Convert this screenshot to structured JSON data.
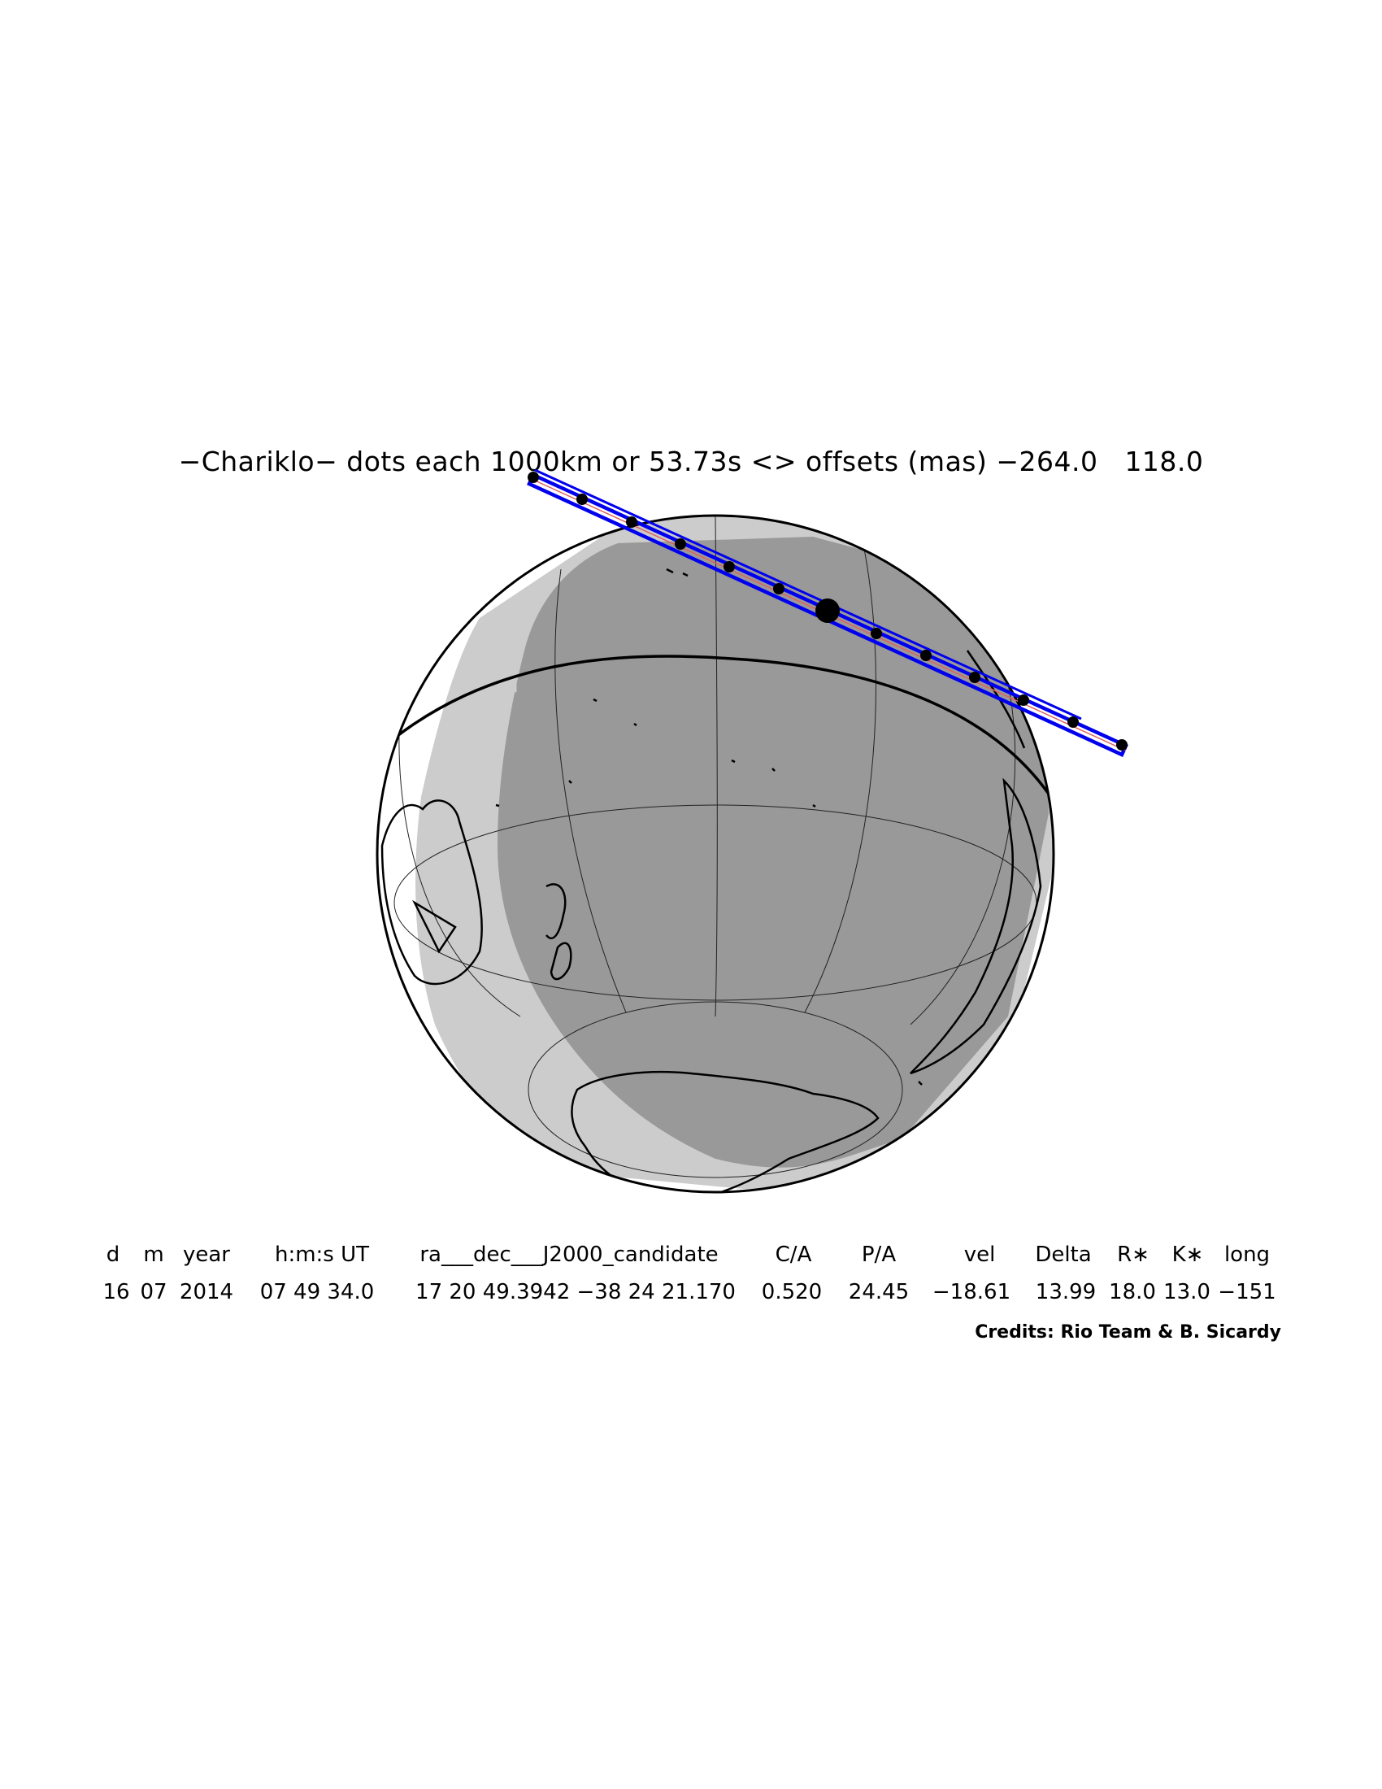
{
  "title": "−Chariklo− dots each 1000km or 53.73s <> offsets (mas) −264.0   118.0",
  "table": {
    "headers": [
      "d",
      "m",
      "year",
      "h:m:s UT",
      "ra___dec___J2000_candidate",
      "C/A",
      "P/A",
      "vel",
      "Delta",
      "R∗",
      "K∗",
      "long"
    ],
    "values": [
      "16",
      "07",
      "2014",
      "07 49 34.0",
      "17 20 49.3942 −38 24 21.170",
      "0.520",
      "24.45",
      "−18.61",
      "13.99",
      "18.0",
      "13.0",
      "−151"
    ]
  },
  "credits": "Credits: Rio Team & B. Sicardy",
  "colors": {
    "night": "#999999",
    "twilight": "#cccccc",
    "path": "#0000ee",
    "centerline": "#e06060",
    "dots": "#000000"
  }
}
